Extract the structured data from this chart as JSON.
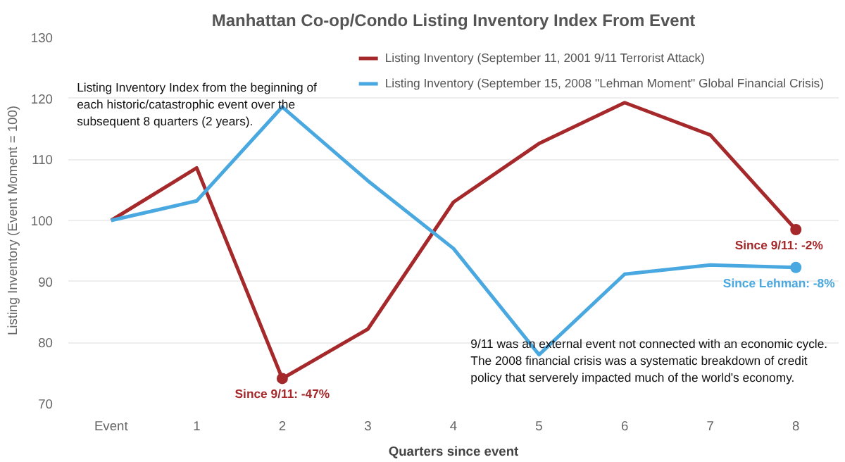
{
  "chart_data": {
    "type": "line",
    "title": "Manhattan Co-op/Condo Listing Inventory Index From Event",
    "categories": [
      "Event",
      "1",
      "2",
      "3",
      "4",
      "5",
      "6",
      "7",
      "8"
    ],
    "xlabel": "Quarters since event",
    "ylabel": "Listing Inventory (Event Moment = 100)",
    "ylim": [
      70,
      130
    ],
    "yticks": [
      70,
      80,
      90,
      100,
      110,
      120,
      130
    ],
    "grid": "y",
    "legend": "top right",
    "line_style": "solid",
    "series": [
      {
        "name": "Listing Inventory (September 11, 2001 9/11 Terrorist Attack)",
        "color": "#a5282a",
        "values": [
          100,
          108.6,
          74.1,
          82.2,
          103,
          112.6,
          119.3,
          114,
          98.5
        ]
      },
      {
        "name": "Listing Inventory (September 15, 2008 \"Lehman Moment\" Global Financial Crisis)",
        "color": "#4aa8e0",
        "values": [
          100,
          103.2,
          118.6,
          106.5,
          95.4,
          78,
          91.2,
          92.7,
          92.3
        ]
      }
    ],
    "annotations": [
      "Listing Inventory Index from the beginning of each historic/catastrophic event over the subsequent 8 quarters (2 years).",
      {
        "text": "Since 9/11: -47%",
        "x": "2",
        "y": 74.1
      },
      {
        "text": "Since 9/11: -2%",
        "x": "8",
        "y": 98.5
      },
      {
        "text": "Since Lehman: -8%",
        "x": "8",
        "y": 92.3
      },
      "9/11 was an external event not connected with an economic cycle.  The 2008 financial crisis was a systematic breakdown of credit policy that serverely impacted much of the world's economy."
    ]
  }
}
